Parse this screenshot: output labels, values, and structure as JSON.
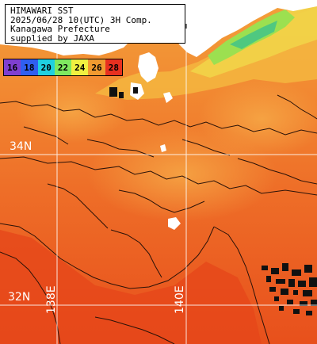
{
  "header": {
    "lines": [
      "HIMAWARI SST",
      "2025/06/28 10(UTC) 3H Comp.",
      "Kanagawa Prefecture",
      "supplied by JAXA"
    ]
  },
  "legend": {
    "items": [
      {
        "label": "16",
        "color": "#7f3fd0"
      },
      {
        "label": "18",
        "color": "#2f5ff0"
      },
      {
        "label": "20",
        "color": "#1fd0e0"
      },
      {
        "label": "22",
        "color": "#7fe860"
      },
      {
        "label": "24",
        "color": "#f0f040"
      },
      {
        "label": "26",
        "color": "#f09a30"
      },
      {
        "label": "28",
        "color": "#e83020"
      }
    ]
  },
  "grid_labels": {
    "lat_34": "34N",
    "lat_32": "32N",
    "lon_138": "138E",
    "lon_140": "140E"
  },
  "colors": {
    "land": "#ffffff",
    "warm_sea": "#e8571e",
    "mid_sea": "#f08030",
    "cool_sea": "#f4a23c",
    "coastal_sea": "#f2c440",
    "cold_sea": "#9ce050",
    "contour": "#2a1208",
    "cloud": "#111111",
    "grid": "#ffffff"
  }
}
